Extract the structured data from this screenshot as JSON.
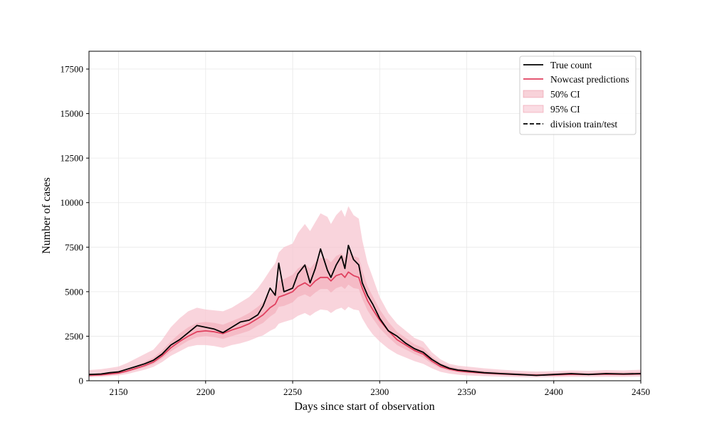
{
  "chart_data": {
    "type": "line",
    "xlabel": "Days since start of observation",
    "ylabel": "Number of cases",
    "xlim": [
      2133,
      2450
    ],
    "ylim": [
      0,
      18500
    ],
    "x_ticks": [
      2150,
      2200,
      2250,
      2300,
      2350,
      2400,
      2450
    ],
    "y_ticks": [
      0,
      2500,
      5000,
      7500,
      10000,
      12500,
      15000,
      17500
    ],
    "grid": true,
    "legend_placement": "top-right",
    "legend": [
      "True count",
      "Nowcast predictions",
      "50% CI",
      "95% CI",
      "division train/test"
    ],
    "colors": {
      "true_count": "#000000",
      "nowcast": "#e0415f",
      "ci50": "#f2a5b4",
      "ci95": "#f7c5d0",
      "grid": "#e8e8e8"
    },
    "series": [
      {
        "name": "True count",
        "x": [
          2133,
          2140,
          2145,
          2150,
          2155,
          2160,
          2165,
          2170,
          2175,
          2180,
          2185,
          2190,
          2195,
          2200,
          2205,
          2210,
          2215,
          2220,
          2225,
          2230,
          2233,
          2237,
          2240,
          2242,
          2245,
          2250,
          2253,
          2257,
          2260,
          2263,
          2266,
          2270,
          2272,
          2275,
          2278,
          2280,
          2282,
          2285,
          2288,
          2290,
          2293,
          2296,
          2300,
          2305,
          2310,
          2315,
          2320,
          2325,
          2330,
          2335,
          2340,
          2345,
          2350,
          2360,
          2370,
          2380,
          2390,
          2400,
          2410,
          2420,
          2430,
          2440,
          2450
        ],
        "y": [
          350,
          380,
          450,
          500,
          650,
          800,
          950,
          1150,
          1500,
          2000,
          2300,
          2700,
          3100,
          3000,
          2900,
          2700,
          3000,
          3300,
          3400,
          3700,
          4200,
          5200,
          4800,
          6600,
          5000,
          5200,
          6000,
          6500,
          5500,
          6300,
          7400,
          6200,
          5800,
          6500,
          7000,
          6300,
          7600,
          6800,
          6500,
          5500,
          4800,
          4300,
          3500,
          2800,
          2500,
          2100,
          1800,
          1600,
          1200,
          900,
          700,
          600,
          550,
          450,
          400,
          350,
          300,
          350,
          400,
          350,
          400,
          380,
          400
        ]
      },
      {
        "name": "Nowcast predictions",
        "x": [
          2133,
          2140,
          2145,
          2150,
          2155,
          2160,
          2165,
          2170,
          2175,
          2180,
          2185,
          2190,
          2195,
          2200,
          2205,
          2210,
          2215,
          2220,
          2225,
          2230,
          2233,
          2237,
          2240,
          2242,
          2245,
          2250,
          2253,
          2257,
          2260,
          2263,
          2266,
          2270,
          2272,
          2275,
          2278,
          2280,
          2282,
          2285,
          2288,
          2290,
          2293,
          2296,
          2300,
          2305,
          2310,
          2315,
          2320,
          2325,
          2330,
          2335,
          2340,
          2345,
          2350,
          2360,
          2370,
          2380,
          2390,
          2400,
          2410,
          2420,
          2430,
          2440,
          2450
        ],
        "y": [
          300,
          330,
          380,
          430,
          550,
          700,
          850,
          1050,
          1400,
          1850,
          2200,
          2500,
          2750,
          2800,
          2750,
          2650,
          2850,
          3000,
          3200,
          3500,
          3700,
          4100,
          4300,
          4700,
          4800,
          5000,
          5300,
          5500,
          5300,
          5600,
          5800,
          5800,
          5600,
          5900,
          6000,
          5800,
          6100,
          5900,
          5800,
          5200,
          4500,
          4000,
          3400,
          2800,
          2300,
          2000,
          1700,
          1500,
          1100,
          800,
          650,
          550,
          500,
          430,
          380,
          340,
          320,
          330,
          360,
          350,
          370,
          360,
          380
        ]
      }
    ],
    "ci95": {
      "lower": [
        200,
        220,
        260,
        300,
        380,
        500,
        620,
        780,
        1050,
        1400,
        1650,
        1900,
        2000,
        2000,
        1950,
        1850,
        2000,
        2100,
        2250,
        2450,
        2550,
        2800,
        2950,
        3200,
        3300,
        3450,
        3650,
        3800,
        3650,
        3850,
        4000,
        3950,
        3800,
        4000,
        4100,
        3950,
        4150,
        4000,
        3950,
        3500,
        3000,
        2600,
        2200,
        1800,
        1500,
        1300,
        1100,
        950,
        700,
        500,
        400,
        340,
        300,
        260,
        230,
        200,
        190,
        200,
        220,
        210,
        220,
        215,
        230
      ],
      "upper": [
        600,
        650,
        720,
        800,
        1000,
        1250,
        1500,
        1750,
        2300,
        3000,
        3500,
        3900,
        4100,
        4000,
        3950,
        3900,
        4100,
        4400,
        4700,
        5200,
        5600,
        6200,
        6600,
        7200,
        7500,
        7700,
        8300,
        8800,
        8400,
        8900,
        9400,
        9200,
        8800,
        9300,
        9600,
        9200,
        9800,
        9300,
        9100,
        7900,
        6600,
        5800,
        4700,
        3800,
        3200,
        2800,
        2400,
        2200,
        1600,
        1200,
        950,
        850,
        800,
        700,
        620,
        560,
        520,
        540,
        580,
        560,
        600,
        580,
        620
      ]
    },
    "ci50": {
      "lower": [
        260,
        290,
        330,
        380,
        480,
        620,
        750,
        930,
        1250,
        1650,
        1950,
        2250,
        2450,
        2500,
        2450,
        2350,
        2500,
        2650,
        2800,
        3100,
        3250,
        3600,
        3800,
        4150,
        4200,
        4400,
        4700,
        4850,
        4700,
        4950,
        5150,
        5150,
        4950,
        5200,
        5300,
        5150,
        5400,
        5200,
        5150,
        4600,
        3950,
        3500,
        2950,
        2450,
        2000,
        1750,
        1500,
        1300,
        950,
        700,
        560,
        480,
        430,
        370,
        330,
        290,
        275,
        285,
        310,
        300,
        320,
        310,
        330
      ],
      "upper": [
        380,
        420,
        480,
        540,
        680,
        850,
        1050,
        1300,
        1700,
        2200,
        2650,
        3000,
        3250,
        3300,
        3250,
        3150,
        3350,
        3550,
        3800,
        4150,
        4400,
        4900,
        5100,
        5600,
        5700,
        5950,
        6300,
        6550,
        6300,
        6650,
        6900,
        6850,
        6650,
        7000,
        7150,
        6900,
        7250,
        7000,
        6900,
        6200,
        5300,
        4750,
        4000,
        3300,
        2750,
        2400,
        2050,
        1850,
        1350,
        1000,
        820,
        700,
        640,
        560,
        500,
        450,
        420,
        430,
        470,
        450,
        480,
        470,
        500
      ]
    }
  }
}
